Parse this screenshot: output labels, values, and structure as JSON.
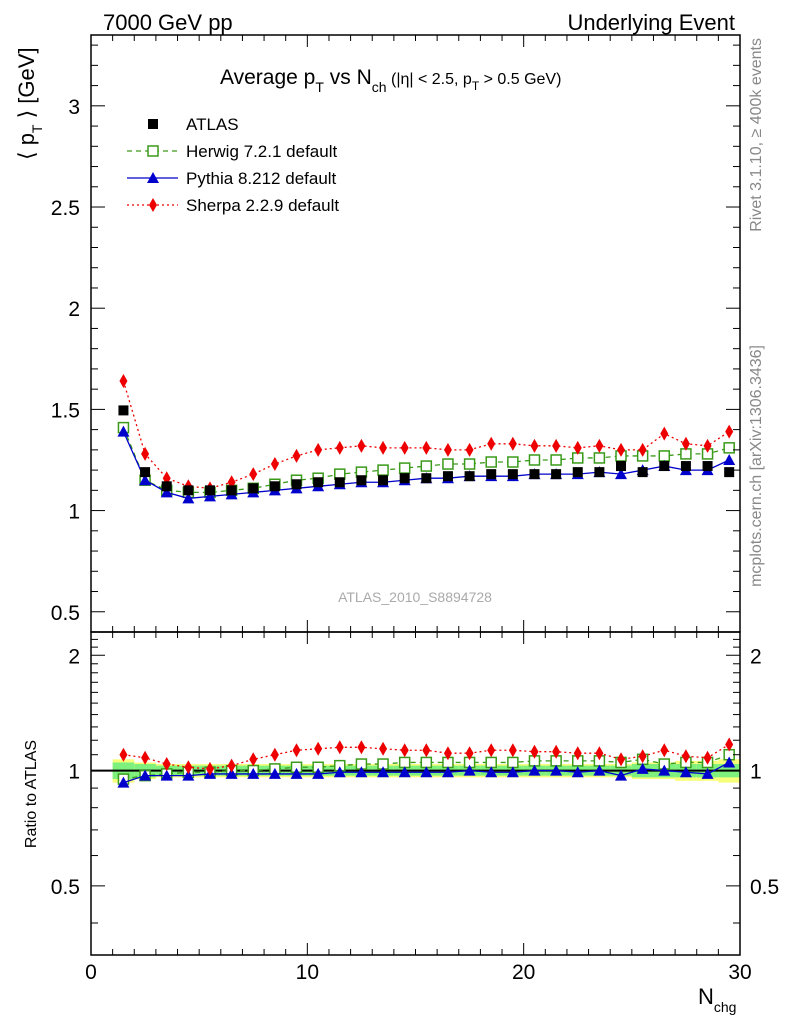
{
  "header": {
    "left": "7000 GeV pp",
    "right": "Underlying Event"
  },
  "side_labels": {
    "rivet": "Rivet 3.1.10, ≥ 400k events",
    "mcplots": "mcplots.cern.ch [arXiv:1306.3436]"
  },
  "watermark": "ATLAS_2010_S8894728",
  "colors": {
    "atlas": "#000000",
    "herwig": "#3a9a1a",
    "pythia": "#0000cc",
    "sherpa": "#ee0000",
    "band_inner": "#7df07d",
    "band_outer": "#f7ff7a"
  },
  "chart_data": {
    "type": "scatter",
    "title_parts": {
      "main": "Average p",
      "sub1": "T",
      "mid": " vs N",
      "sub2": "ch",
      "cuts_a": " (|η| < 2.5, p",
      "cuts_sub": "T",
      "cuts_b": " > 0.5 GeV)"
    },
    "ylabel": "⟨ p_T ⟩ [GeV]",
    "ylabel_parts": {
      "a": "⟨ p",
      "sub": "T",
      "b": " ⟩ [GeV]"
    },
    "ratio_ylabel": "Ratio to ATLAS",
    "xlabel_parts": {
      "main": "N",
      "sub": "chg"
    },
    "xlim": [
      0,
      30
    ],
    "ylim": [
      0.4,
      3.35
    ],
    "ratio_ylim": [
      0.33,
      2.3
    ],
    "x_ticks": [
      "0",
      "10",
      "20",
      "30"
    ],
    "y_ticks": [
      "0.5",
      "1",
      "1.5",
      "2",
      "2.5",
      "3"
    ],
    "ratio_ticks": [
      "0.5",
      "1",
      "2"
    ],
    "legend": [
      {
        "key": "atlas",
        "label": "ATLAS"
      },
      {
        "key": "herwig",
        "label": "Herwig 7.2.1 default"
      },
      {
        "key": "pythia",
        "label": "Pythia 8.212 default"
      },
      {
        "key": "sherpa",
        "label": "Sherpa 2.2.9 default"
      }
    ],
    "x": [
      1.5,
      2.5,
      3.5,
      4.5,
      5.5,
      6.5,
      7.5,
      8.5,
      9.5,
      10.5,
      11.5,
      12.5,
      13.5,
      14.5,
      15.5,
      16.5,
      17.5,
      18.5,
      19.5,
      20.5,
      21.5,
      22.5,
      23.5,
      24.5,
      25.5,
      26.5,
      27.5,
      28.5,
      29.5
    ],
    "series": [
      {
        "key": "atlas",
        "name": "ATLAS",
        "values": [
          1.495,
          1.19,
          1.12,
          1.1,
          1.1,
          1.1,
          1.11,
          1.12,
          1.13,
          1.14,
          1.14,
          1.15,
          1.15,
          1.16,
          1.16,
          1.17,
          1.17,
          1.18,
          1.18,
          1.18,
          1.18,
          1.19,
          1.19,
          1.22,
          1.19,
          1.22,
          1.22,
          1.22,
          1.19
        ]
      },
      {
        "key": "herwig",
        "name": "Herwig 7.2.1 default",
        "values": [
          1.41,
          1.15,
          1.1,
          1.09,
          1.09,
          1.1,
          1.11,
          1.13,
          1.15,
          1.16,
          1.18,
          1.19,
          1.2,
          1.21,
          1.22,
          1.23,
          1.23,
          1.24,
          1.24,
          1.25,
          1.25,
          1.26,
          1.26,
          1.27,
          1.27,
          1.27,
          1.28,
          1.28,
          1.31
        ]
      },
      {
        "key": "pythia",
        "name": "Pythia 8.212 default",
        "values": [
          1.39,
          1.15,
          1.09,
          1.06,
          1.07,
          1.08,
          1.09,
          1.1,
          1.11,
          1.12,
          1.13,
          1.14,
          1.14,
          1.15,
          1.16,
          1.16,
          1.17,
          1.17,
          1.17,
          1.18,
          1.18,
          1.18,
          1.19,
          1.18,
          1.2,
          1.22,
          1.2,
          1.2,
          1.25
        ]
      },
      {
        "key": "sherpa",
        "name": "Sherpa 2.2.9 default",
        "values": [
          1.64,
          1.28,
          1.16,
          1.12,
          1.11,
          1.14,
          1.18,
          1.23,
          1.27,
          1.3,
          1.31,
          1.32,
          1.31,
          1.31,
          1.31,
          1.3,
          1.3,
          1.33,
          1.33,
          1.32,
          1.32,
          1.31,
          1.32,
          1.3,
          1.3,
          1.38,
          1.33,
          1.32,
          1.39
        ]
      }
    ],
    "ratio_series": [
      {
        "key": "herwig",
        "values": [
          0.95,
          0.97,
          0.98,
          0.99,
          0.99,
          1.0,
          1.0,
          1.01,
          1.02,
          1.02,
          1.03,
          1.04,
          1.04,
          1.05,
          1.05,
          1.05,
          1.05,
          1.05,
          1.05,
          1.06,
          1.06,
          1.06,
          1.06,
          1.05,
          1.07,
          1.04,
          1.05,
          1.05,
          1.1
        ]
      },
      {
        "key": "pythia",
        "values": [
          0.93,
          0.97,
          0.97,
          0.97,
          0.98,
          0.98,
          0.98,
          0.98,
          0.98,
          0.98,
          0.99,
          0.99,
          0.99,
          0.99,
          0.99,
          0.99,
          1.0,
          0.99,
          0.99,
          1.0,
          1.0,
          0.99,
          1.0,
          0.97,
          1.01,
          1.0,
          0.99,
          0.98,
          1.05
        ]
      },
      {
        "key": "sherpa",
        "values": [
          1.1,
          1.08,
          1.04,
          1.02,
          1.01,
          1.03,
          1.07,
          1.1,
          1.13,
          1.14,
          1.15,
          1.15,
          1.14,
          1.13,
          1.13,
          1.11,
          1.11,
          1.13,
          1.13,
          1.12,
          1.12,
          1.11,
          1.11,
          1.07,
          1.09,
          1.13,
          1.09,
          1.08,
          1.17
        ]
      }
    ],
    "ratio_band_inner": [
      0.05,
      0.04,
      0.03,
      0.03,
      0.03,
      0.03,
      0.03,
      0.03,
      0.03,
      0.03,
      0.03,
      0.03,
      0.03,
      0.03,
      0.03,
      0.03,
      0.03,
      0.03,
      0.03,
      0.03,
      0.03,
      0.03,
      0.03,
      0.03,
      0.04,
      0.04,
      0.04,
      0.04,
      0.04
    ],
    "ratio_band_outer": [
      0.07,
      0.05,
      0.04,
      0.04,
      0.04,
      0.04,
      0.04,
      0.04,
      0.04,
      0.04,
      0.04,
      0.04,
      0.04,
      0.04,
      0.04,
      0.04,
      0.04,
      0.04,
      0.04,
      0.04,
      0.04,
      0.04,
      0.04,
      0.04,
      0.05,
      0.05,
      0.06,
      0.06,
      0.07
    ]
  }
}
